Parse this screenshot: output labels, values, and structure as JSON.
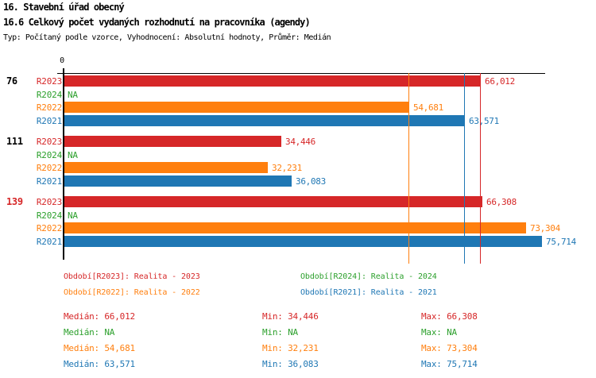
{
  "header": {
    "line1": "16. Stavební úřad obecný",
    "line2": "16.6 Celkový počet vydaných rozhodnutí na pracovníka (agendy)",
    "line3": "Typ: Počítaný podle vzorce, Vyhodnocení: Absolutní hodnoty, Průměr: Medián"
  },
  "chart_data": {
    "type": "bar",
    "orientation": "horizontal",
    "value_axis": {
      "min": 0,
      "max": 76400,
      "zero_label": "0"
    },
    "series": [
      {
        "id": "R2023",
        "label": "Období[R2023]: Realita - 2023",
        "color": "#d62728"
      },
      {
        "id": "R2024",
        "label": "Období[R2024]: Realita - 2024",
        "color": "#2ca02c"
      },
      {
        "id": "R2022",
        "label": "Období[R2022]: Realita - 2022",
        "color": "#ff7f0e"
      },
      {
        "id": "R2021",
        "label": "Období[R2021]: Realita - 2021",
        "color": "#1f77b4"
      }
    ],
    "groups": [
      {
        "label": "76",
        "label_color": "#000000",
        "bars": [
          {
            "series": "R2023",
            "value": 66012,
            "display": "66,012"
          },
          {
            "series": "R2024",
            "value": null,
            "display": "NA"
          },
          {
            "series": "R2022",
            "value": 54681,
            "display": "54,681"
          },
          {
            "series": "R2021",
            "value": 63571,
            "display": "63,571"
          }
        ]
      },
      {
        "label": "111",
        "label_color": "#000000",
        "bars": [
          {
            "series": "R2023",
            "value": 34446,
            "display": "34,446"
          },
          {
            "series": "R2024",
            "value": null,
            "display": "NA"
          },
          {
            "series": "R2022",
            "value": 32231,
            "display": "32,231"
          },
          {
            "series": "R2021",
            "value": 36083,
            "display": "36,083"
          }
        ]
      },
      {
        "label": "139",
        "label_color": "#d62728",
        "bars": [
          {
            "series": "R2023",
            "value": 66308,
            "display": "66,308"
          },
          {
            "series": "R2024",
            "value": null,
            "display": "NA"
          },
          {
            "series": "R2022",
            "value": 73304,
            "display": "73,304"
          },
          {
            "series": "R2021",
            "value": 75714,
            "display": "75,714"
          }
        ]
      }
    ],
    "median_lines": [
      {
        "series": "R2022",
        "value": 54681
      },
      {
        "series": "R2021",
        "value": 63571
      },
      {
        "series": "R2023",
        "value": 66012
      }
    ]
  },
  "legend": {
    "rows": [
      [
        "R2023",
        "R2024"
      ],
      [
        "R2022",
        "R2021"
      ]
    ]
  },
  "stats": {
    "rows": [
      {
        "series": "R2023",
        "median": "Medián: 66,012",
        "min": "Min: 34,446",
        "max": "Max: 66,308"
      },
      {
        "series": "R2024",
        "median": "Medián: NA",
        "min": "Min: NA",
        "max": "Max: NA"
      },
      {
        "series": "R2022",
        "median": "Medián: 54,681",
        "min": "Min: 32,231",
        "max": "Max: 73,304"
      },
      {
        "series": "R2021",
        "median": "Medián: 63,571",
        "min": "Min: 36,083",
        "max": "Max: 75,714"
      }
    ]
  }
}
